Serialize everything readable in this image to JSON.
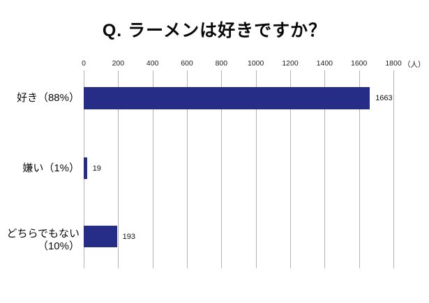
{
  "title": "Q. ラーメンは好きですか？",
  "axis": {
    "ticks": [
      "0",
      "200",
      "400",
      "600",
      "800",
      "1000",
      "1200",
      "1400",
      "1600",
      "1800"
    ],
    "unit": "（人）"
  },
  "rows": [
    {
      "lines": [
        "好き（88%）"
      ],
      "value": "1663"
    },
    {
      "lines": [
        "嫌い（1%）"
      ],
      "value": "19"
    },
    {
      "lines": [
        "どちらでもない",
        "（10%）"
      ],
      "value": "193"
    }
  ],
  "chart_data": {
    "type": "bar",
    "orientation": "horizontal",
    "title": "Q. ラーメンは好きですか？",
    "categories": [
      "好き（88%）",
      "嫌い（1%）",
      "どちらでもない（10%）"
    ],
    "values": [
      1663,
      19,
      193
    ],
    "percentages": [
      88,
      1,
      10
    ],
    "x_ticks": [
      0,
      200,
      400,
      600,
      800,
      1000,
      1200,
      1400,
      1600,
      1800
    ],
    "xlim": [
      0,
      1800
    ],
    "x_unit": "（人）",
    "bar_color": "#252d87",
    "gridline_color": "#b2b2b2",
    "grid": true,
    "legend": false
  }
}
